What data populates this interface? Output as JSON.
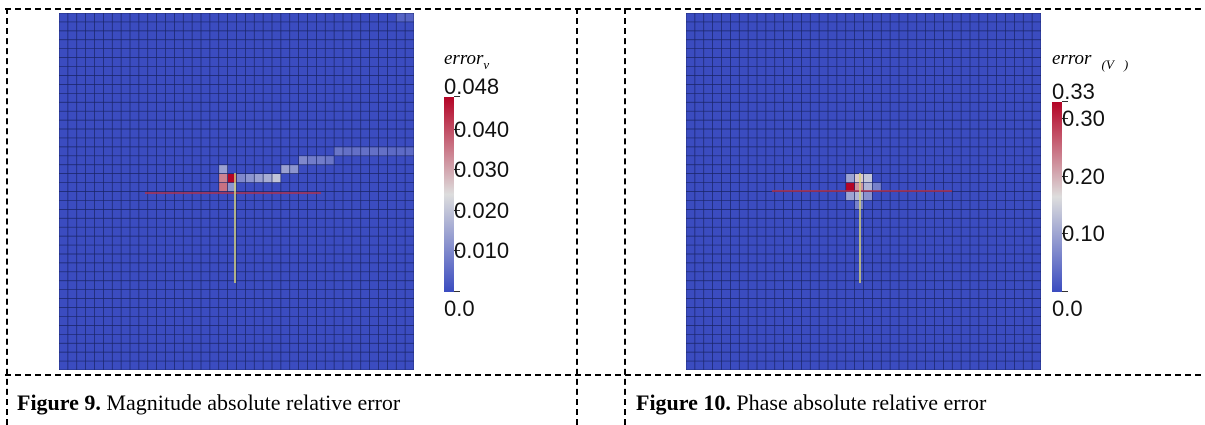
{
  "figures": [
    {
      "caption_label": "Figure 9.",
      "caption_text": " Magnitude absolute relative error",
      "legend_title": "error",
      "legend_subscript": "v",
      "colorbar_labels": [
        "0.048",
        "0.040",
        "0.030",
        "0.020",
        "0.010",
        "0.0"
      ],
      "colorbar_max": 0.048
    },
    {
      "caption_label": "Figure 10.",
      "caption_text": " Phase absolute relative error",
      "legend_title": "error",
      "legend_subscript": "∢(V⃗)",
      "colorbar_labels": [
        "0.33",
        "0.30",
        "0.20",
        "0.10",
        "0.0"
      ],
      "colorbar_max": 0.33
    }
  ],
  "colors": {
    "background_cell": "#3b4cc0",
    "grid_line": "#1a2466",
    "low": "#3b4cc0",
    "mid": "#dddddd",
    "high": "#b40426",
    "probe_vertical": "#d8d47a",
    "probe_horizontal": "#b0304a"
  },
  "chart_data": [
    {
      "type": "heatmap",
      "title": "",
      "colorbar_label": "error_v",
      "range": [
        0.0,
        0.048
      ],
      "ticks": [
        0.0,
        0.01,
        0.02,
        0.03,
        0.04,
        0.048
      ],
      "grid_size": [
        40,
        40
      ],
      "cells": [
        {
          "col": 19,
          "row": 18,
          "value": 0.048
        },
        {
          "col": 18,
          "row": 18,
          "value": 0.034
        },
        {
          "col": 18,
          "row": 19,
          "value": 0.036
        },
        {
          "col": 18,
          "row": 17,
          "value": 0.014
        },
        {
          "col": 19,
          "row": 19,
          "value": 0.012
        },
        {
          "col": 20,
          "row": 18,
          "value": 0.01
        },
        {
          "col": 21,
          "row": 18,
          "value": 0.012
        },
        {
          "col": 22,
          "row": 18,
          "value": 0.014
        },
        {
          "col": 23,
          "row": 18,
          "value": 0.016
        },
        {
          "col": 24,
          "row": 18,
          "value": 0.02
        },
        {
          "col": 25,
          "row": 17,
          "value": 0.014
        },
        {
          "col": 26,
          "row": 17,
          "value": 0.012
        },
        {
          "col": 27,
          "row": 16,
          "value": 0.01
        },
        {
          "col": 28,
          "row": 16,
          "value": 0.008
        },
        {
          "col": 29,
          "row": 16,
          "value": 0.008
        },
        {
          "col": 30,
          "row": 16,
          "value": 0.007
        },
        {
          "col": 31,
          "row": 15,
          "value": 0.007
        },
        {
          "col": 32,
          "row": 15,
          "value": 0.006
        },
        {
          "col": 33,
          "row": 15,
          "value": 0.006
        },
        {
          "col": 34,
          "row": 15,
          "value": 0.006
        },
        {
          "col": 35,
          "row": 15,
          "value": 0.006
        },
        {
          "col": 36,
          "row": 15,
          "value": 0.006
        },
        {
          "col": 37,
          "row": 15,
          "value": 0.005
        },
        {
          "col": 38,
          "row": 15,
          "value": 0.005
        },
        {
          "col": 39,
          "row": 15,
          "value": 0.005
        },
        {
          "col": 38,
          "row": 0,
          "value": 0.004
        },
        {
          "col": 39,
          "row": 0,
          "value": 0.004
        }
      ]
    },
    {
      "type": "heatmap",
      "title": "",
      "colorbar_label": "error_∢(V)",
      "range": [
        0.0,
        0.33
      ],
      "ticks": [
        0.0,
        0.1,
        0.2,
        0.3,
        0.33
      ],
      "grid_size": [
        40,
        40
      ],
      "cells": [
        {
          "col": 18,
          "row": 19,
          "value": 0.33
        },
        {
          "col": 19,
          "row": 19,
          "value": 0.22
        },
        {
          "col": 19,
          "row": 18,
          "value": 0.18
        },
        {
          "col": 20,
          "row": 18,
          "value": 0.14
        },
        {
          "col": 20,
          "row": 19,
          "value": 0.12
        },
        {
          "col": 19,
          "row": 20,
          "value": 0.12
        },
        {
          "col": 18,
          "row": 20,
          "value": 0.1
        },
        {
          "col": 20,
          "row": 20,
          "value": 0.08
        },
        {
          "col": 18,
          "row": 18,
          "value": 0.1
        },
        {
          "col": 21,
          "row": 19,
          "value": 0.06
        },
        {
          "col": 19,
          "row": 21,
          "value": 0.06
        }
      ]
    }
  ]
}
